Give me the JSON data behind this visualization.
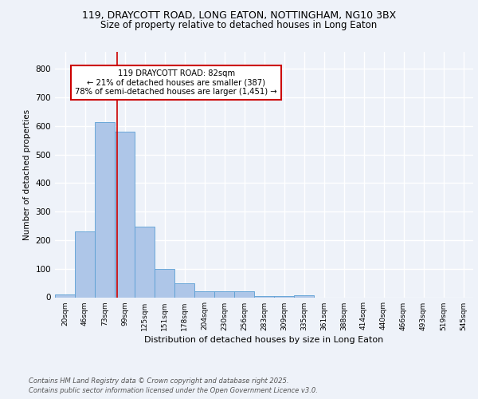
{
  "title1": "119, DRAYCOTT ROAD, LONG EATON, NOTTINGHAM, NG10 3BX",
  "title2": "Size of property relative to detached houses in Long Eaton",
  "xlabel": "Distribution of detached houses by size in Long Eaton",
  "ylabel": "Number of detached properties",
  "bar_labels": [
    "20sqm",
    "46sqm",
    "73sqm",
    "99sqm",
    "125sqm",
    "151sqm",
    "178sqm",
    "204sqm",
    "230sqm",
    "256sqm",
    "283sqm",
    "309sqm",
    "335sqm",
    "361sqm",
    "388sqm",
    "414sqm",
    "440sqm",
    "466sqm",
    "493sqm",
    "519sqm",
    "545sqm"
  ],
  "bar_values": [
    10,
    232,
    615,
    580,
    248,
    98,
    48,
    22,
    22,
    22,
    5,
    5,
    8,
    0,
    0,
    0,
    0,
    0,
    0,
    0,
    0
  ],
  "bar_color": "#aec6e8",
  "bar_edge_color": "#5a9fd4",
  "vline_x": 2.62,
  "vline_color": "#cc0000",
  "annotation_text": "119 DRAYCOTT ROAD: 82sqm\n← 21% of detached houses are smaller (387)\n78% of semi-detached houses are larger (1,451) →",
  "annotation_box_color": "#ffffff",
  "annotation_box_edge": "#cc0000",
  "ylim": [
    0,
    860
  ],
  "yticks": [
    0,
    100,
    200,
    300,
    400,
    500,
    600,
    700,
    800
  ],
  "footer1": "Contains HM Land Registry data © Crown copyright and database right 2025.",
  "footer2": "Contains public sector information licensed under the Open Government Licence v3.0.",
  "bg_color": "#eef2f9",
  "grid_color": "#ffffff"
}
